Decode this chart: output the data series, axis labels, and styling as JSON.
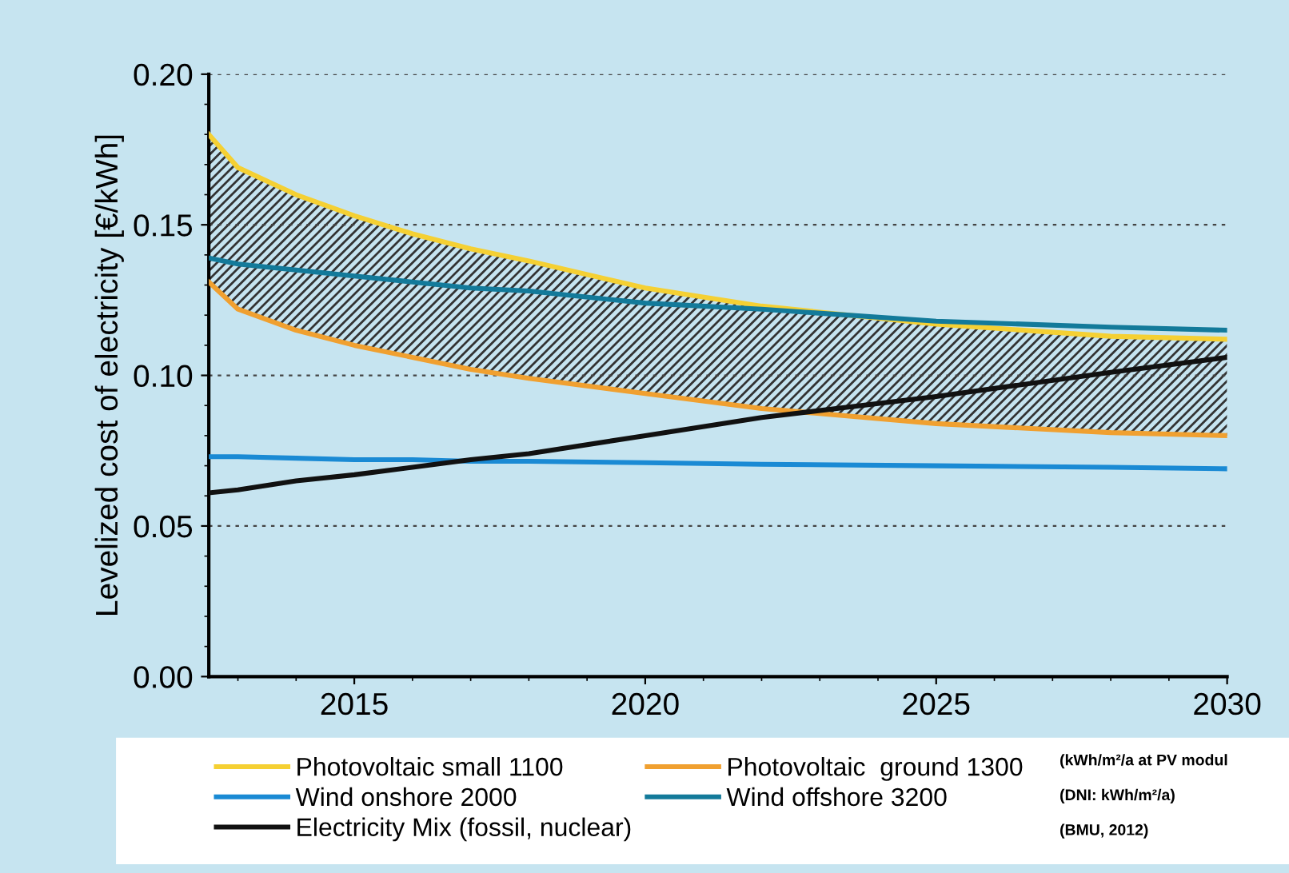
{
  "chart_data": {
    "type": "line",
    "ylabel": "Levelized cost of electricity [€/kWh]",
    "x": [
      2012.5,
      2013,
      2014,
      2015,
      2016,
      2017,
      2018,
      2020,
      2022,
      2025,
      2028,
      2030
    ],
    "series": [
      {
        "name": "Photovoltaic small 1100",
        "color": "#f5d033",
        "values": [
          0.18,
          0.169,
          0.16,
          0.153,
          0.147,
          0.142,
          0.138,
          0.129,
          0.123,
          0.117,
          0.113,
          0.112
        ],
        "lower": [
          0.131,
          0.122,
          0.115,
          0.11,
          0.106,
          0.102,
          0.099,
          0.094,
          0.089,
          0.084,
          0.081,
          0.08
        ],
        "upper": [
          0.18,
          0.169,
          0.16,
          0.153,
          0.147,
          0.142,
          0.138,
          0.129,
          0.123,
          0.117,
          0.113,
          0.112
        ]
      },
      {
        "name": "Photovoltaic  ground 1300",
        "color": "#f0a030",
        "values": [
          0.131,
          0.122,
          0.115,
          0.11,
          0.106,
          0.102,
          0.099,
          0.094,
          0.089,
          0.084,
          0.081,
          0.08
        ]
      },
      {
        "name": "Wind onshore 2000",
        "color": "#1a8ad4",
        "values": [
          0.073,
          0.073,
          0.0725,
          0.072,
          0.072,
          0.0715,
          0.0715,
          0.071,
          0.0705,
          0.07,
          0.0695,
          0.069
        ]
      },
      {
        "name": "Wind offshore 3200",
        "color": "#137a9a",
        "values": [
          0.139,
          0.137,
          0.135,
          0.133,
          0.131,
          0.129,
          0.128,
          0.124,
          0.122,
          0.118,
          0.116,
          0.115
        ]
      },
      {
        "name": "Electricity Mix (fossil, nuclear)",
        "color": "#111111",
        "values": [
          0.061,
          0.062,
          0.065,
          0.067,
          0.0695,
          0.072,
          0.074,
          0.08,
          0.086,
          0.093,
          0.101,
          0.106
        ]
      }
    ],
    "xlim": [
      2012.5,
      2030
    ],
    "ylim": [
      0,
      0.2
    ],
    "xticks": [
      2015,
      2020,
      2025,
      2030
    ],
    "yticks": [
      {
        "value": 0,
        "label": "0.00"
      },
      {
        "value": 0.05,
        "label": "0.05"
      },
      {
        "value": 0.1,
        "label": "0.10"
      },
      {
        "value": 0.15,
        "label": "0.15"
      },
      {
        "value": 0.2,
        "label": "0.20"
      }
    ],
    "grid": "y",
    "legend": "bottom",
    "line_style": "solid",
    "annotations": [
      "(kWh/m²/a at PV modul",
      "(DNI: kWh/m²/a)",
      "(BMU, 2012)"
    ]
  }
}
